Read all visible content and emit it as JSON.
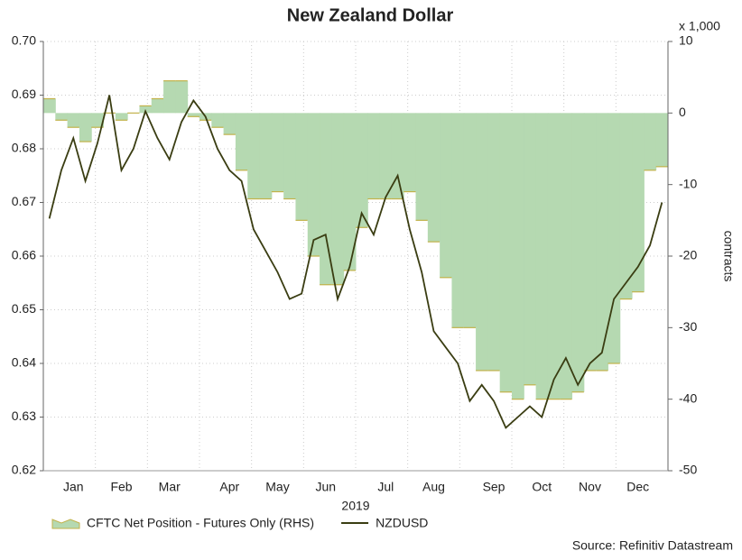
{
  "chart_data": {
    "type": "line_area",
    "title": "New Zealand Dollar",
    "xlabel": "2019",
    "y2label": "contracts",
    "y2unit": "x 1,000",
    "source": "Source: Refinitiv Datastream",
    "categories": [
      null,
      null,
      "Jan",
      null,
      null,
      null,
      "Feb",
      null,
      null,
      null,
      "Mar",
      null,
      null,
      null,
      null,
      "Apr",
      null,
      null,
      null,
      "May",
      null,
      null,
      null,
      "Jun",
      null,
      null,
      null,
      null,
      "Jul",
      null,
      null,
      null,
      "Aug",
      null,
      null,
      null,
      null,
      "Sep",
      null,
      null,
      null,
      "Oct",
      null,
      null,
      null,
      "Nov",
      null,
      null,
      null,
      "Dec",
      null,
      null
    ],
    "ylim": [
      0.62,
      0.7
    ],
    "yticks": [
      0.62,
      0.63,
      0.64,
      0.65,
      0.66,
      0.67,
      0.68,
      0.69,
      {
        "value": 0.7,
        "label": "0.70"
      }
    ],
    "y2lim": [
      -50,
      10
    ],
    "y2ticks": [
      -50,
      -40,
      -30,
      -20,
      -10,
      0,
      10
    ],
    "grid": true,
    "series": [
      {
        "name": "CFTC Net Position - Futures Only (RHS)",
        "type": "area",
        "axis": "y2",
        "color": "#b5d9b1",
        "edge": "#c2b24a",
        "values": [
          2,
          -1,
          -2,
          -4,
          -2,
          0,
          -1,
          0,
          1,
          2,
          4.5,
          4.5,
          -0.5,
          -1,
          -2,
          -3,
          -8,
          -12,
          -12,
          -11,
          -12,
          -15,
          -20,
          -24,
          -24,
          -22,
          -16,
          -12,
          -12,
          -12,
          -11,
          -15,
          -18,
          -23,
          -30,
          -30,
          -36,
          -36,
          -39,
          -40,
          -38,
          -40,
          -40,
          -40,
          -39,
          -36,
          -36,
          -35,
          -26,
          -25,
          -8,
          -7.5
        ]
      },
      {
        "name": "NZDUSD",
        "type": "line",
        "color": "#3a3d12",
        "values": [
          0.667,
          0.676,
          0.682,
          0.674,
          0.681,
          0.69,
          0.676,
          0.68,
          0.687,
          0.682,
          0.678,
          0.685,
          0.689,
          0.686,
          0.68,
          0.676,
          0.674,
          0.665,
          0.661,
          0.657,
          0.652,
          0.653,
          0.663,
          0.664,
          0.652,
          0.658,
          0.668,
          0.664,
          0.671,
          0.675,
          0.665,
          0.657,
          0.646,
          0.643,
          0.64,
          0.633,
          0.636,
          0.633,
          0.628,
          0.63,
          0.632,
          0.63,
          0.637,
          0.641,
          0.636,
          0.64,
          0.642,
          0.652,
          0.655,
          0.658,
          0.662,
          0.67
        ]
      }
    ]
  }
}
